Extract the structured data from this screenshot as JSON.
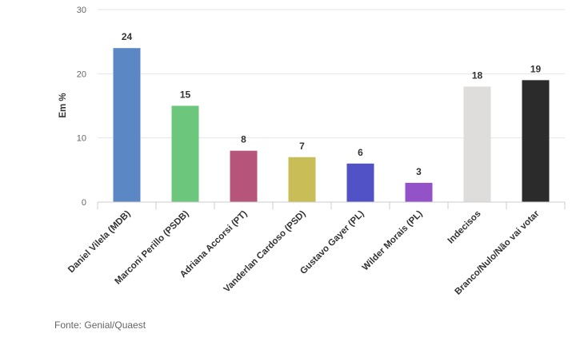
{
  "chart_data": {
    "type": "bar",
    "categories": [
      "Daniel Vilela (MDB)",
      "Marconi Perillo (PSDB)",
      "Adriana Accorsi (PT)",
      "Vanderlan Cardoso (PSD)",
      "Gustavo Gayer (PL)",
      "Wilder Morais (PL)",
      "Indecisos",
      "Branco/Nulo/Não vai votar"
    ],
    "values": [
      24,
      15,
      8,
      7,
      6,
      3,
      18,
      19
    ],
    "colors": [
      "#5b87c5",
      "#6cc67c",
      "#b75479",
      "#c9bd58",
      "#5152c6",
      "#9452c8",
      "#dfdcdc",
      "#2b2b2b"
    ],
    "ylabel": "Em %",
    "ylim": [
      0,
      30
    ],
    "yticks": [
      0,
      10,
      20,
      30
    ],
    "grid": true,
    "data_labels": true,
    "legend": "none"
  },
  "source": "Fonte: Genial/Quaest"
}
